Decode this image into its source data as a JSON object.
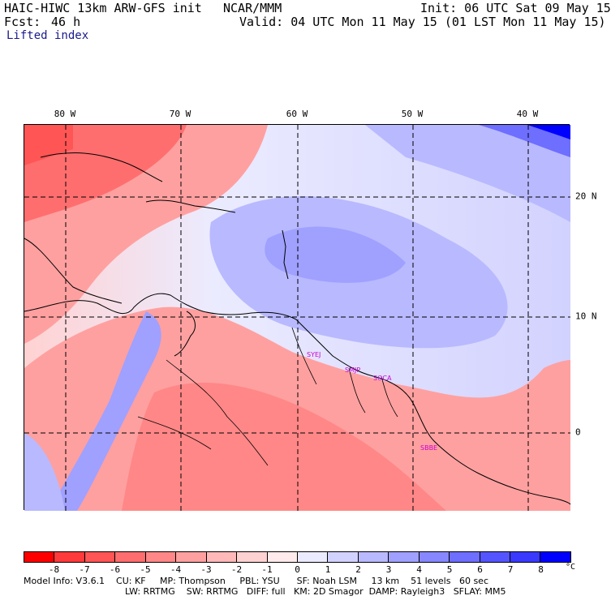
{
  "header": {
    "model_title": "HAIC-HIWC 13km ARW-GFS init",
    "org": "NCAR/MMM",
    "init": "Init: 06 UTC Sat 09 May 15",
    "fcst_label": "Fcst:",
    "fcst_value": "46 h",
    "valid": "Valid: 04 UTC Mon 11 May 15 (01 LST Mon 11 May 15)",
    "field": "Lifted index"
  },
  "map": {
    "lon_labels": [
      "80 W",
      "70 W",
      "60 W",
      "50 W",
      "40 W"
    ],
    "lat_labels": [
      "20 N",
      "10 N",
      "0"
    ],
    "stations": [
      "SYEJ",
      "SMJP",
      "SOCA",
      "SBBE"
    ]
  },
  "colorbar": {
    "unit": "°C",
    "ticks": [
      "-8",
      "-7",
      "-6",
      "-5",
      "-4",
      "-3",
      "-2",
      "-1",
      "0",
      "1",
      "2",
      "3",
      "4",
      "5",
      "6",
      "7",
      "8"
    ],
    "colors": [
      "#ff0000",
      "#ff3a3a",
      "#ff5555",
      "#ff6e6e",
      "#ff8787",
      "#ffa0a0",
      "#ffb9b9",
      "#ffd2d2",
      "#ffebeb",
      "#ebebff",
      "#d2d2ff",
      "#b9b9ff",
      "#a0a0ff",
      "#8787ff",
      "#6e6eff",
      "#5555ff",
      "#3a3aff",
      "#0000ff"
    ]
  },
  "footer": {
    "line1": "Model Info: V3.6.1    CU: KF     MP: Thompson     PBL: YSU      SF: Noah LSM     13 km    51 levels   60 sec",
    "line2": "LW: RRTMG    SW: RRTMG   DIFF: full   KM: 2D Smagor  DAMP: Rayleigh3   SFLAY: MM5"
  }
}
